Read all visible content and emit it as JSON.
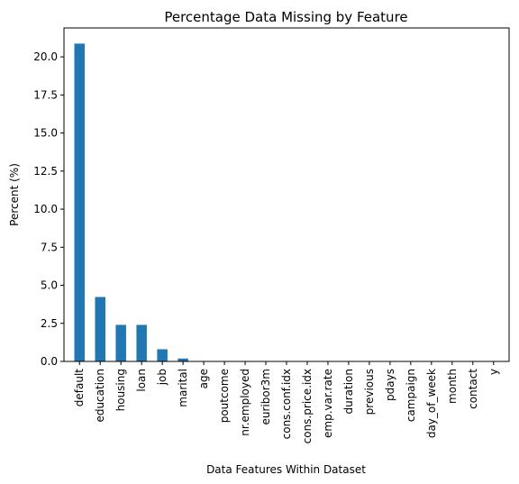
{
  "chart_data": {
    "type": "bar",
    "title": "Percentage Data Missing by Feature",
    "xlabel": "Data Features Within Dataset",
    "ylabel": "Percent (%)",
    "categories": [
      "default",
      "education",
      "housing",
      "loan",
      "job",
      "marital",
      "age",
      "poutcome",
      "nr.employed",
      "euribor3m",
      "cons.conf.idx",
      "cons.price.idx",
      "emp.var.rate",
      "duration",
      "previous",
      "pdays",
      "campaign",
      "day_of_week",
      "month",
      "contact",
      "y"
    ],
    "values": [
      20.87,
      4.23,
      2.4,
      2.4,
      0.8,
      0.19,
      0,
      0,
      0,
      0,
      0,
      0,
      0,
      0,
      0,
      0,
      0,
      0,
      0,
      0,
      0
    ],
    "yticks": [
      0.0,
      2.5,
      5.0,
      7.5,
      10.0,
      12.5,
      15.0,
      17.5,
      20.0
    ],
    "ytick_labels": [
      "0.0",
      "2.5",
      "5.0",
      "7.5",
      "10.0",
      "12.5",
      "15.0",
      "17.5",
      "20.0"
    ],
    "ylim": [
      0,
      21.9
    ],
    "grid": false,
    "legend": false,
    "bar_color": "#1f77b4"
  }
}
